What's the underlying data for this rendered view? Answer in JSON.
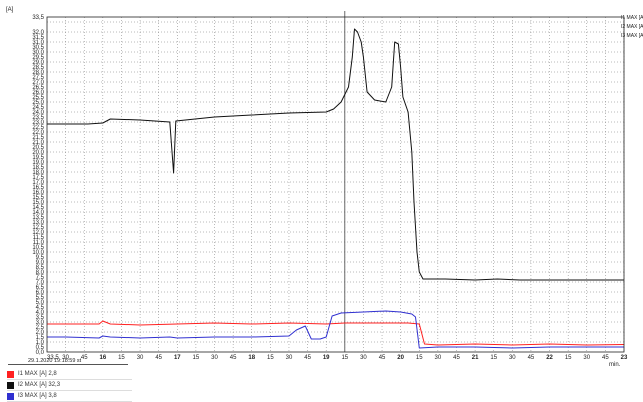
{
  "chart_data": {
    "type": "line",
    "yunit": "[A]",
    "ylim": [
      0,
      33.5
    ],
    "xunit": "min.",
    "xlim": [
      15.25,
      23
    ],
    "yticks": [
      "0,0",
      "0,5",
      "1,0",
      "1,5",
      "2,0",
      "2,5",
      "3,0",
      "3,5",
      "4,0",
      "4,5",
      "5,0",
      "5,5",
      "6,0",
      "6,5",
      "7,0",
      "7,5",
      "8,0",
      "8,5",
      "9,0",
      "9,5",
      "10,0",
      "10,5",
      "11,0",
      "11,5",
      "12,0",
      "12,5",
      "13,0",
      "13,5",
      "14,0",
      "14,5",
      "15,0",
      "15,5",
      "16,0",
      "16,5",
      "17,0",
      "17,5",
      "18,0",
      "18,5",
      "19,0",
      "19,5",
      "20,0",
      "20,5",
      "21,0",
      "21,5",
      "22,0",
      "22,5",
      "23,0",
      "23,5",
      "24,0",
      "24,5",
      "25,0",
      "25,5",
      "26,0",
      "26,5",
      "27,0",
      "27,5",
      "28,0",
      "28,5",
      "29,0",
      "29,5",
      "30,0",
      "30,5",
      "31,0",
      "31,5",
      "32,0",
      "33,5"
    ],
    "xticks": [
      "33,5",
      "30",
      "45",
      "16",
      "15",
      "30",
      "45",
      "17",
      "15",
      "30",
      "45",
      "18",
      "15",
      "30",
      "45",
      "19",
      "15",
      "30",
      "45",
      "20",
      "15",
      "30",
      "45",
      "21",
      "15",
      "30",
      "45",
      "22",
      "15",
      "30",
      "45",
      "23"
    ],
    "date_label": "29.1.2020 19:18:59 st",
    "series": [
      {
        "name": "I1 MAX [A]",
        "color": "#ff2020",
        "legend_value": "2,8",
        "points": [
          [
            15.25,
            2.8
          ],
          [
            15.95,
            2.8
          ],
          [
            16.0,
            3.1
          ],
          [
            16.1,
            2.8
          ],
          [
            16.5,
            2.7
          ],
          [
            17.0,
            2.8
          ],
          [
            17.5,
            2.9
          ],
          [
            18.0,
            2.8
          ],
          [
            18.5,
            2.9
          ],
          [
            19.0,
            2.8
          ],
          [
            19.25,
            2.9
          ],
          [
            19.5,
            2.9
          ],
          [
            19.8,
            2.9
          ],
          [
            20.1,
            2.9
          ],
          [
            20.25,
            2.8
          ],
          [
            20.32,
            0.8
          ],
          [
            20.5,
            0.7
          ],
          [
            21.0,
            0.8
          ],
          [
            21.5,
            0.7
          ],
          [
            22.0,
            0.8
          ],
          [
            22.5,
            0.7
          ],
          [
            23.0,
            0.75
          ]
        ]
      },
      {
        "name": "I2 MAX [A]",
        "color": "#111111",
        "legend_value": "32,3",
        "points": [
          [
            15.25,
            22.8
          ],
          [
            15.8,
            22.8
          ],
          [
            16.0,
            22.9
          ],
          [
            16.1,
            23.3
          ],
          [
            16.5,
            23.2
          ],
          [
            16.9,
            23.0
          ],
          [
            16.95,
            17.9
          ],
          [
            16.98,
            23.1
          ],
          [
            17.5,
            23.5
          ],
          [
            18.0,
            23.7
          ],
          [
            18.5,
            23.9
          ],
          [
            19.0,
            24.0
          ],
          [
            19.1,
            24.3
          ],
          [
            19.2,
            25.0
          ],
          [
            19.3,
            26.5
          ],
          [
            19.35,
            29.5
          ],
          [
            19.38,
            32.3
          ],
          [
            19.42,
            32.0
          ],
          [
            19.47,
            31.0
          ],
          [
            19.5,
            29.5
          ],
          [
            19.55,
            26.0
          ],
          [
            19.65,
            25.2
          ],
          [
            19.8,
            25.0
          ],
          [
            19.88,
            26.5
          ],
          [
            19.92,
            31.0
          ],
          [
            19.97,
            30.8
          ],
          [
            20.0,
            28.5
          ],
          [
            20.03,
            25.5
          ],
          [
            20.1,
            24.0
          ],
          [
            20.15,
            20.0
          ],
          [
            20.18,
            15.0
          ],
          [
            20.22,
            10.0
          ],
          [
            20.25,
            8.0
          ],
          [
            20.3,
            7.3
          ],
          [
            20.6,
            7.3
          ],
          [
            21.0,
            7.2
          ],
          [
            21.3,
            7.3
          ],
          [
            21.6,
            7.2
          ],
          [
            22.0,
            7.2
          ],
          [
            22.5,
            7.2
          ],
          [
            23.0,
            7.2
          ]
        ]
      },
      {
        "name": "I3 MAX [A]",
        "color": "#3030d0",
        "legend_value": "3,8",
        "points": [
          [
            15.25,
            1.5
          ],
          [
            15.5,
            1.5
          ],
          [
            15.95,
            1.4
          ],
          [
            16.0,
            1.6
          ],
          [
            16.1,
            1.5
          ],
          [
            16.5,
            1.4
          ],
          [
            16.9,
            1.5
          ],
          [
            17.0,
            1.4
          ],
          [
            17.5,
            1.5
          ],
          [
            18.0,
            1.5
          ],
          [
            18.5,
            1.6
          ],
          [
            18.6,
            2.2
          ],
          [
            18.72,
            2.6
          ],
          [
            18.8,
            1.3
          ],
          [
            18.92,
            1.3
          ],
          [
            19.0,
            1.5
          ],
          [
            19.08,
            3.6
          ],
          [
            19.2,
            3.9
          ],
          [
            19.5,
            4.0
          ],
          [
            19.8,
            4.1
          ],
          [
            20.0,
            4.0
          ],
          [
            20.15,
            3.8
          ],
          [
            20.2,
            3.5
          ],
          [
            20.25,
            0.4
          ],
          [
            20.5,
            0.5
          ],
          [
            21.0,
            0.5
          ],
          [
            21.5,
            0.4
          ],
          [
            22.0,
            0.5
          ],
          [
            22.5,
            0.5
          ],
          [
            23.0,
            0.5
          ]
        ]
      }
    ],
    "legend_right": [
      "I1 MAX [A]",
      "I2 MAX [A]",
      "I3 MAX [A]"
    ],
    "grid": true
  }
}
